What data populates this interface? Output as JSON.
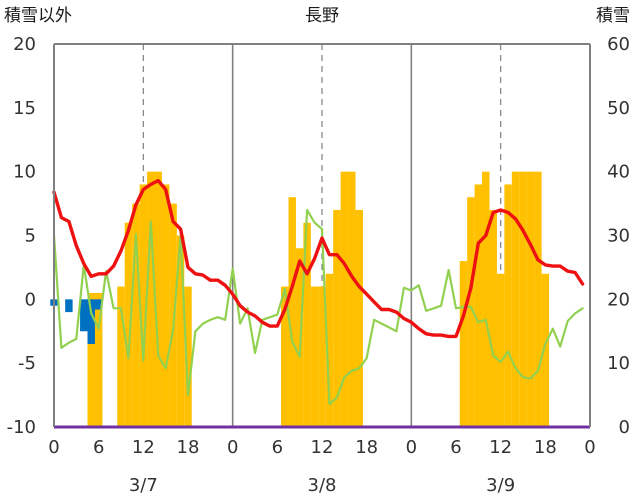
{
  "chart_data": {
    "type": "combo",
    "title": "長野",
    "left_axis_title": "積雪以外",
    "right_axis_title": "積雪",
    "left_axis": {
      "min": -10,
      "max": 20,
      "ticks": [
        -10,
        -5,
        0,
        5,
        10,
        15,
        20
      ]
    },
    "right_axis": {
      "min": 0,
      "max": 60,
      "ticks": [
        0,
        10,
        20,
        30,
        40,
        50,
        60
      ]
    },
    "x_tick_labels": [
      "0",
      "6",
      "12",
      "18",
      "0",
      "6",
      "12",
      "18",
      "0",
      "6",
      "12",
      "18",
      "0"
    ],
    "x_tick_hours": [
      0,
      6,
      12,
      18,
      24,
      30,
      36,
      42,
      48,
      54,
      60,
      66,
      72
    ],
    "date_labels": [
      "3/7",
      "3/8",
      "3/9"
    ],
    "date_label_hours": [
      12,
      36,
      60
    ],
    "day_boundaries": [
      24,
      48
    ],
    "mid_day_lines": [
      12,
      36,
      60
    ],
    "colors": {
      "temperature": "#ee1111",
      "wind": "#92d050",
      "snow_depth": "#ffc000",
      "precipitation": "#0070c0",
      "baseline": "#7030a0",
      "grid": "#808080"
    },
    "series": [
      {
        "key": "temperature",
        "axis": "left",
        "x": [
          0,
          1,
          2,
          3,
          4,
          5,
          6,
          7,
          8,
          9,
          10,
          11,
          12,
          13,
          14,
          15,
          16,
          17,
          18,
          19,
          20,
          21,
          22,
          23,
          24,
          25,
          26,
          27,
          28,
          29,
          30,
          31,
          32,
          33,
          34,
          35,
          36,
          37,
          38,
          39,
          40,
          41,
          42,
          43,
          44,
          45,
          46,
          47,
          48,
          49,
          50,
          51,
          52,
          53,
          54,
          55,
          56,
          57,
          58,
          59,
          60,
          61,
          62,
          63,
          64,
          65,
          66,
          67,
          68,
          69,
          70,
          71
        ],
        "values": [
          8.4,
          6.4,
          6.1,
          4.2,
          2.8,
          1.8,
          2.0,
          2.0,
          2.6,
          3.8,
          5.4,
          7.4,
          8.6,
          9.0,
          9.3,
          8.6,
          6.1,
          5.5,
          2.5,
          2.0,
          1.9,
          1.5,
          1.5,
          1.1,
          0.4,
          -0.5,
          -1.0,
          -1.3,
          -1.8,
          -2.1,
          -2.1,
          -0.8,
          1.0,
          3.0,
          2.0,
          3.2,
          4.8,
          3.5,
          3.5,
          2.8,
          1.8,
          1.0,
          0.4,
          -0.2,
          -0.8,
          -0.8,
          -1.0,
          -1.5,
          -1.8,
          -2.3,
          -2.7,
          -2.8,
          -2.8,
          -2.9,
          -2.9,
          -1.3,
          0.9,
          4.4,
          5.0,
          6.8,
          7.0,
          6.8,
          6.3,
          5.4,
          4.3,
          3.1,
          2.7,
          2.6,
          2.6,
          2.2,
          2.1,
          1.2
        ]
      },
      {
        "key": "wind",
        "axis": "left",
        "x": [
          0,
          1,
          2,
          3,
          4,
          5,
          6,
          7,
          8,
          9,
          10,
          11,
          12,
          13,
          14,
          15,
          16,
          17,
          18,
          19,
          20,
          21,
          22,
          23,
          24,
          25,
          26,
          27,
          28,
          29,
          30,
          31,
          32,
          33,
          34,
          35,
          36,
          37,
          38,
          39,
          40,
          41,
          42,
          43,
          44,
          45,
          46,
          47,
          48,
          49,
          50,
          51,
          52,
          53,
          54,
          55,
          56,
          57,
          58,
          59,
          60,
          61,
          62,
          63,
          64,
          65,
          66,
          67,
          68,
          69,
          70,
          71
        ],
        "values": [
          5.0,
          -3.8,
          -3.4,
          -3.1,
          2.7,
          -1.1,
          -2.3,
          2.2,
          -0.7,
          -0.7,
          -4.6,
          5.1,
          -4.8,
          6.1,
          -4.4,
          -5.4,
          -2.4,
          5.0,
          -7.5,
          -2.5,
          -1.9,
          -1.6,
          -1.4,
          -1.6,
          2.4,
          -1.9,
          -0.7,
          -4.2,
          -1.6,
          -1.4,
          -1.2,
          0.8,
          -3.3,
          -4.5,
          7.0,
          6.0,
          5.5,
          -8.2,
          -7.7,
          -6.1,
          -5.6,
          -5.4,
          -4.6,
          -1.6,
          -1.9,
          -2.2,
          -2.5,
          0.9,
          0.7,
          1.1,
          -0.9,
          -0.7,
          -0.5,
          2.3,
          -0.7,
          -0.6,
          -0.6,
          -1.8,
          -1.6,
          -4.4,
          -4.9,
          -4.1,
          -5.4,
          -6.1,
          -6.2,
          -5.6,
          -3.5,
          -2.3,
          -3.7,
          -1.7,
          -1.1,
          -0.7
        ]
      },
      {
        "key": "snow_depth",
        "axis": "right",
        "bars": [
          {
            "hour": 5,
            "value": 21
          },
          {
            "hour": 6,
            "value": 21
          },
          {
            "hour": 9,
            "value": 22
          },
          {
            "hour": 10,
            "value": 32
          },
          {
            "hour": 11,
            "value": 35
          },
          {
            "hour": 12,
            "value": 38
          },
          {
            "hour": 13,
            "value": 40
          },
          {
            "hour": 14,
            "value": 40
          },
          {
            "hour": 15,
            "value": 38
          },
          {
            "hour": 16,
            "value": 35
          },
          {
            "hour": 17,
            "value": 30
          },
          {
            "hour": 18,
            "value": 22
          },
          {
            "hour": 31,
            "value": 22
          },
          {
            "hour": 32,
            "value": 36
          },
          {
            "hour": 33,
            "value": 28
          },
          {
            "hour": 34,
            "value": 32
          },
          {
            "hour": 35,
            "value": 22
          },
          {
            "hour": 36,
            "value": 22
          },
          {
            "hour": 37,
            "value": 24
          },
          {
            "hour": 38,
            "value": 34
          },
          {
            "hour": 39,
            "value": 40
          },
          {
            "hour": 40,
            "value": 40
          },
          {
            "hour": 41,
            "value": 34
          },
          {
            "hour": 55,
            "value": 26
          },
          {
            "hour": 56,
            "value": 36
          },
          {
            "hour": 57,
            "value": 38
          },
          {
            "hour": 58,
            "value": 40
          },
          {
            "hour": 59,
            "value": 34
          },
          {
            "hour": 60,
            "value": 24
          },
          {
            "hour": 61,
            "value": 38
          },
          {
            "hour": 62,
            "value": 40
          },
          {
            "hour": 63,
            "value": 40
          },
          {
            "hour": 64,
            "value": 40
          },
          {
            "hour": 65,
            "value": 40
          },
          {
            "hour": 66,
            "value": 24
          }
        ]
      },
      {
        "key": "precipitation",
        "axis": "left",
        "bars": [
          {
            "hour": 0,
            "value": -0.5
          },
          {
            "hour": 2,
            "value": -1.0
          },
          {
            "hour": 4,
            "value": -2.5
          },
          {
            "hour": 5,
            "value": -3.5
          },
          {
            "hour": 6,
            "value": -0.8
          }
        ]
      }
    ]
  }
}
